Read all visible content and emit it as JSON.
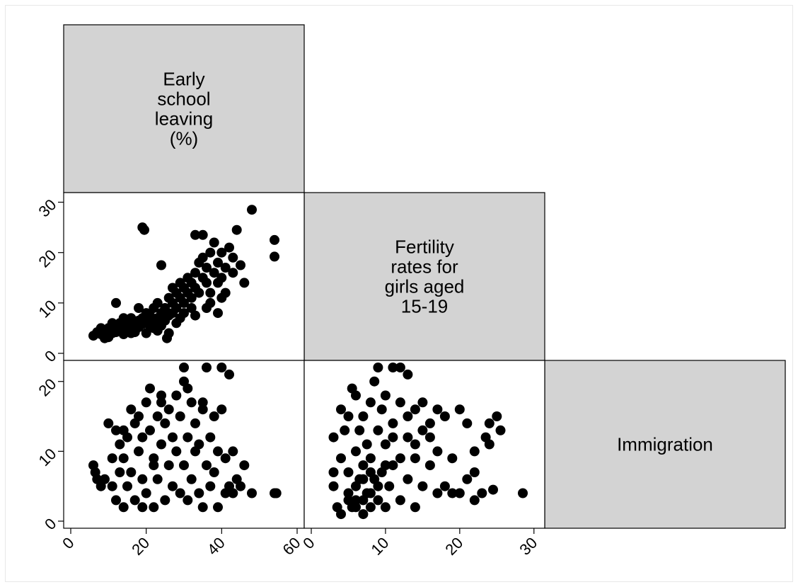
{
  "chart_data": {
    "type": "scatter",
    "variables": [
      {
        "key": "esl",
        "label_lines": [
          "Early",
          "school",
          "leaving",
          "(%)"
        ],
        "ticks": [
          0,
          20,
          40,
          60
        ],
        "vticks": [
          0,
          10,
          20,
          30
        ],
        "range": [
          0,
          60
        ]
      },
      {
        "key": "fert",
        "label_lines": [
          "Fertility",
          "rates for",
          "girls aged",
          "15-19"
        ],
        "ticks": [
          0,
          10,
          20,
          30
        ],
        "vticks": [
          0,
          10,
          20
        ],
        "range": [
          0,
          30.5
        ]
      },
      {
        "key": "immig",
        "label_lines": [
          "Immigration"
        ],
        "range": [
          0,
          22
        ]
      }
    ],
    "panels": [
      {
        "x": "esl",
        "y": "fert",
        "points": [
          [
            6,
            3.5
          ],
          [
            7,
            4.2
          ],
          [
            8,
            3.8
          ],
          [
            9,
            4.5
          ],
          [
            10,
            3.2
          ],
          [
            10,
            5
          ],
          [
            11,
            4
          ],
          [
            12,
            5.5
          ],
          [
            12,
            4.2
          ],
          [
            13,
            6
          ],
          [
            13,
            4.8
          ],
          [
            14,
            5
          ],
          [
            14,
            3.8
          ],
          [
            15,
            6.2
          ],
          [
            15,
            4.5
          ],
          [
            16,
            5.8
          ],
          [
            16,
            7
          ],
          [
            17,
            5
          ],
          [
            17,
            4.2
          ],
          [
            18,
            6.5
          ],
          [
            18,
            5.2
          ],
          [
            19,
            7
          ],
          [
            19,
            5.8
          ],
          [
            20,
            6
          ],
          [
            20,
            8
          ],
          [
            21,
            7.5
          ],
          [
            21,
            5.5
          ],
          [
            22,
            9
          ],
          [
            22,
            6.2
          ],
          [
            23,
            7
          ],
          [
            23,
            10
          ],
          [
            24,
            8
          ],
          [
            24,
            5.5
          ],
          [
            25,
            9
          ],
          [
            25,
            6.5
          ],
          [
            26,
            11
          ],
          [
            26,
            7.5
          ],
          [
            27,
            10
          ],
          [
            27,
            8
          ],
          [
            28,
            12
          ],
          [
            28,
            9
          ],
          [
            29,
            11
          ],
          [
            29,
            7
          ],
          [
            30,
            13
          ],
          [
            30,
            10
          ],
          [
            31,
            12
          ],
          [
            31,
            15
          ],
          [
            32,
            11
          ],
          [
            32,
            14
          ],
          [
            33,
            13
          ],
          [
            33,
            16
          ],
          [
            34,
            12
          ],
          [
            34,
            18
          ],
          [
            35,
            15
          ],
          [
            35,
            19
          ],
          [
            36,
            14
          ],
          [
            36,
            17
          ],
          [
            37,
            20
          ],
          [
            37,
            12
          ],
          [
            38,
            16
          ],
          [
            38,
            22
          ],
          [
            39,
            18
          ],
          [
            39,
            14
          ],
          [
            40,
            20
          ],
          [
            40,
            15
          ],
          [
            41,
            17
          ],
          [
            42,
            21
          ],
          [
            43,
            19
          ],
          [
            44,
            24.5
          ],
          [
            45,
            17.5
          ],
          [
            46,
            14
          ],
          [
            48,
            28.5
          ],
          [
            54,
            22.5
          ],
          [
            54,
            19.2
          ],
          [
            19,
            25
          ],
          [
            19.5,
            24.5
          ],
          [
            24,
            17.5
          ],
          [
            25.5,
            3
          ],
          [
            33,
            23.5
          ],
          [
            35,
            23.5
          ],
          [
            37,
            10
          ],
          [
            32,
            9
          ],
          [
            41,
            12
          ],
          [
            43,
            16
          ],
          [
            12,
            10
          ],
          [
            14,
            7
          ],
          [
            18,
            9
          ],
          [
            20,
            4
          ],
          [
            22,
            5
          ],
          [
            8,
            5
          ],
          [
            9,
            3
          ],
          [
            11,
            6
          ],
          [
            16,
            4
          ],
          [
            23,
            4.5
          ],
          [
            28,
            6
          ],
          [
            27,
            13
          ],
          [
            29,
            14
          ],
          [
            26,
            4
          ],
          [
            30,
            8
          ],
          [
            33,
            7.5
          ],
          [
            36,
            9
          ],
          [
            39,
            8
          ],
          [
            40,
            11
          ]
        ]
      },
      {
        "x": "esl",
        "y": "immig",
        "points": [
          [
            6,
            8
          ],
          [
            6.5,
            7
          ],
          [
            7,
            6
          ],
          [
            8,
            5
          ],
          [
            9,
            6
          ],
          [
            10,
            14
          ],
          [
            11,
            9
          ],
          [
            11,
            5
          ],
          [
            12,
            13
          ],
          [
            12,
            3
          ],
          [
            13,
            11
          ],
          [
            13,
            7
          ],
          [
            14,
            2
          ],
          [
            14,
            9
          ],
          [
            15,
            12
          ],
          [
            15,
            5
          ],
          [
            16,
            16
          ],
          [
            16,
            7
          ],
          [
            17,
            14
          ],
          [
            17,
            3
          ],
          [
            18,
            10
          ],
          [
            18,
            15
          ],
          [
            19,
            6
          ],
          [
            19,
            12
          ],
          [
            20,
            17
          ],
          [
            20,
            4
          ],
          [
            21,
            13
          ],
          [
            21,
            19
          ],
          [
            22,
            9
          ],
          [
            22,
            2
          ],
          [
            23,
            15
          ],
          [
            23,
            6
          ],
          [
            24,
            11
          ],
          [
            24,
            17
          ],
          [
            25,
            3
          ],
          [
            25,
            14
          ],
          [
            26,
            8
          ],
          [
            26,
            16
          ],
          [
            27,
            12
          ],
          [
            27,
            5
          ],
          [
            28,
            18
          ],
          [
            28,
            10
          ],
          [
            29,
            4
          ],
          [
            29,
            15
          ],
          [
            30,
            22
          ],
          [
            30,
            20
          ],
          [
            30,
            8
          ],
          [
            31,
            12
          ],
          [
            31,
            3
          ],
          [
            32,
            17
          ],
          [
            32,
            6
          ],
          [
            33,
            10
          ],
          [
            33,
            14
          ],
          [
            34,
            4
          ],
          [
            34,
            11
          ],
          [
            35,
            16
          ],
          [
            35,
            2
          ],
          [
            36,
            8
          ],
          [
            36,
            22
          ],
          [
            37,
            12
          ],
          [
            37,
            5
          ],
          [
            38,
            7
          ],
          [
            38,
            15
          ],
          [
            39,
            2
          ],
          [
            39,
            10
          ],
          [
            40,
            16
          ],
          [
            40,
            22
          ],
          [
            41,
            9
          ],
          [
            41,
            4
          ],
          [
            42,
            21
          ],
          [
            42,
            5
          ],
          [
            43,
            10
          ],
          [
            43,
            4
          ],
          [
            44,
            6
          ],
          [
            45,
            5
          ],
          [
            46,
            8
          ],
          [
            48,
            4
          ],
          [
            54,
            4
          ],
          [
            54.5,
            4
          ],
          [
            35,
            17
          ],
          [
            31,
            19
          ],
          [
            24,
            18
          ],
          [
            14,
            13
          ],
          [
            19,
            2
          ],
          [
            22,
            8
          ]
        ]
      },
      {
        "x": "fert",
        "y": "immig",
        "points": [
          [
            3,
            5
          ],
          [
            3,
            7
          ],
          [
            3,
            12
          ],
          [
            3.5,
            2
          ],
          [
            4,
            9
          ],
          [
            4,
            1
          ],
          [
            4,
            16
          ],
          [
            4.5,
            13
          ],
          [
            5,
            4
          ],
          [
            5,
            15
          ],
          [
            5,
            7
          ],
          [
            5.5,
            2
          ],
          [
            5.5,
            19
          ],
          [
            6,
            10
          ],
          [
            6,
            3
          ],
          [
            6,
            18
          ],
          [
            6.5,
            6
          ],
          [
            6.5,
            13
          ],
          [
            7,
            1
          ],
          [
            7,
            8
          ],
          [
            7,
            15
          ],
          [
            7.5,
            4
          ],
          [
            7.5,
            11
          ],
          [
            8,
            17
          ],
          [
            8,
            2
          ],
          [
            8,
            9
          ],
          [
            8.5,
            20
          ],
          [
            8.5,
            6
          ],
          [
            9,
            13
          ],
          [
            9,
            3
          ],
          [
            9,
            22
          ],
          [
            9.5,
            16
          ],
          [
            9.5,
            7
          ],
          [
            10,
            11
          ],
          [
            10,
            2
          ],
          [
            10,
            18
          ],
          [
            10.5,
            5
          ],
          [
            11,
            14
          ],
          [
            11,
            22
          ],
          [
            11,
            8
          ],
          [
            12,
            17
          ],
          [
            12,
            3
          ],
          [
            12,
            22
          ],
          [
            13,
            12
          ],
          [
            13,
            21
          ],
          [
            13,
            6
          ],
          [
            14,
            16
          ],
          [
            14,
            9
          ],
          [
            14,
            2
          ],
          [
            15,
            17
          ],
          [
            15,
            13
          ],
          [
            15,
            5
          ],
          [
            16,
            14
          ],
          [
            16,
            8
          ],
          [
            17,
            16
          ],
          [
            17,
            10
          ],
          [
            17,
            4
          ],
          [
            18,
            15
          ],
          [
            18,
            5
          ],
          [
            19,
            9
          ],
          [
            19,
            4
          ],
          [
            20,
            16
          ],
          [
            20,
            4
          ],
          [
            21,
            14
          ],
          [
            21,
            6
          ],
          [
            22,
            10
          ],
          [
            22,
            3
          ],
          [
            22,
            7
          ],
          [
            23,
            4
          ],
          [
            23.5,
            12
          ],
          [
            24,
            14
          ],
          [
            24,
            11
          ],
          [
            24.5,
            4.5
          ],
          [
            25,
            15
          ],
          [
            25.5,
            13
          ],
          [
            28.5,
            4
          ],
          [
            6,
            5
          ],
          [
            7,
            3
          ],
          [
            8,
            4
          ],
          [
            6,
            2
          ],
          [
            5,
            3
          ],
          [
            9,
            5
          ],
          [
            10,
            8
          ],
          [
            11,
            12
          ],
          [
            12,
            9
          ],
          [
            13,
            15
          ],
          [
            14,
            11
          ],
          [
            16,
            12
          ],
          [
            8,
            7
          ],
          [
            7,
            6
          ]
        ]
      }
    ],
    "grid": false,
    "legend": "none"
  }
}
